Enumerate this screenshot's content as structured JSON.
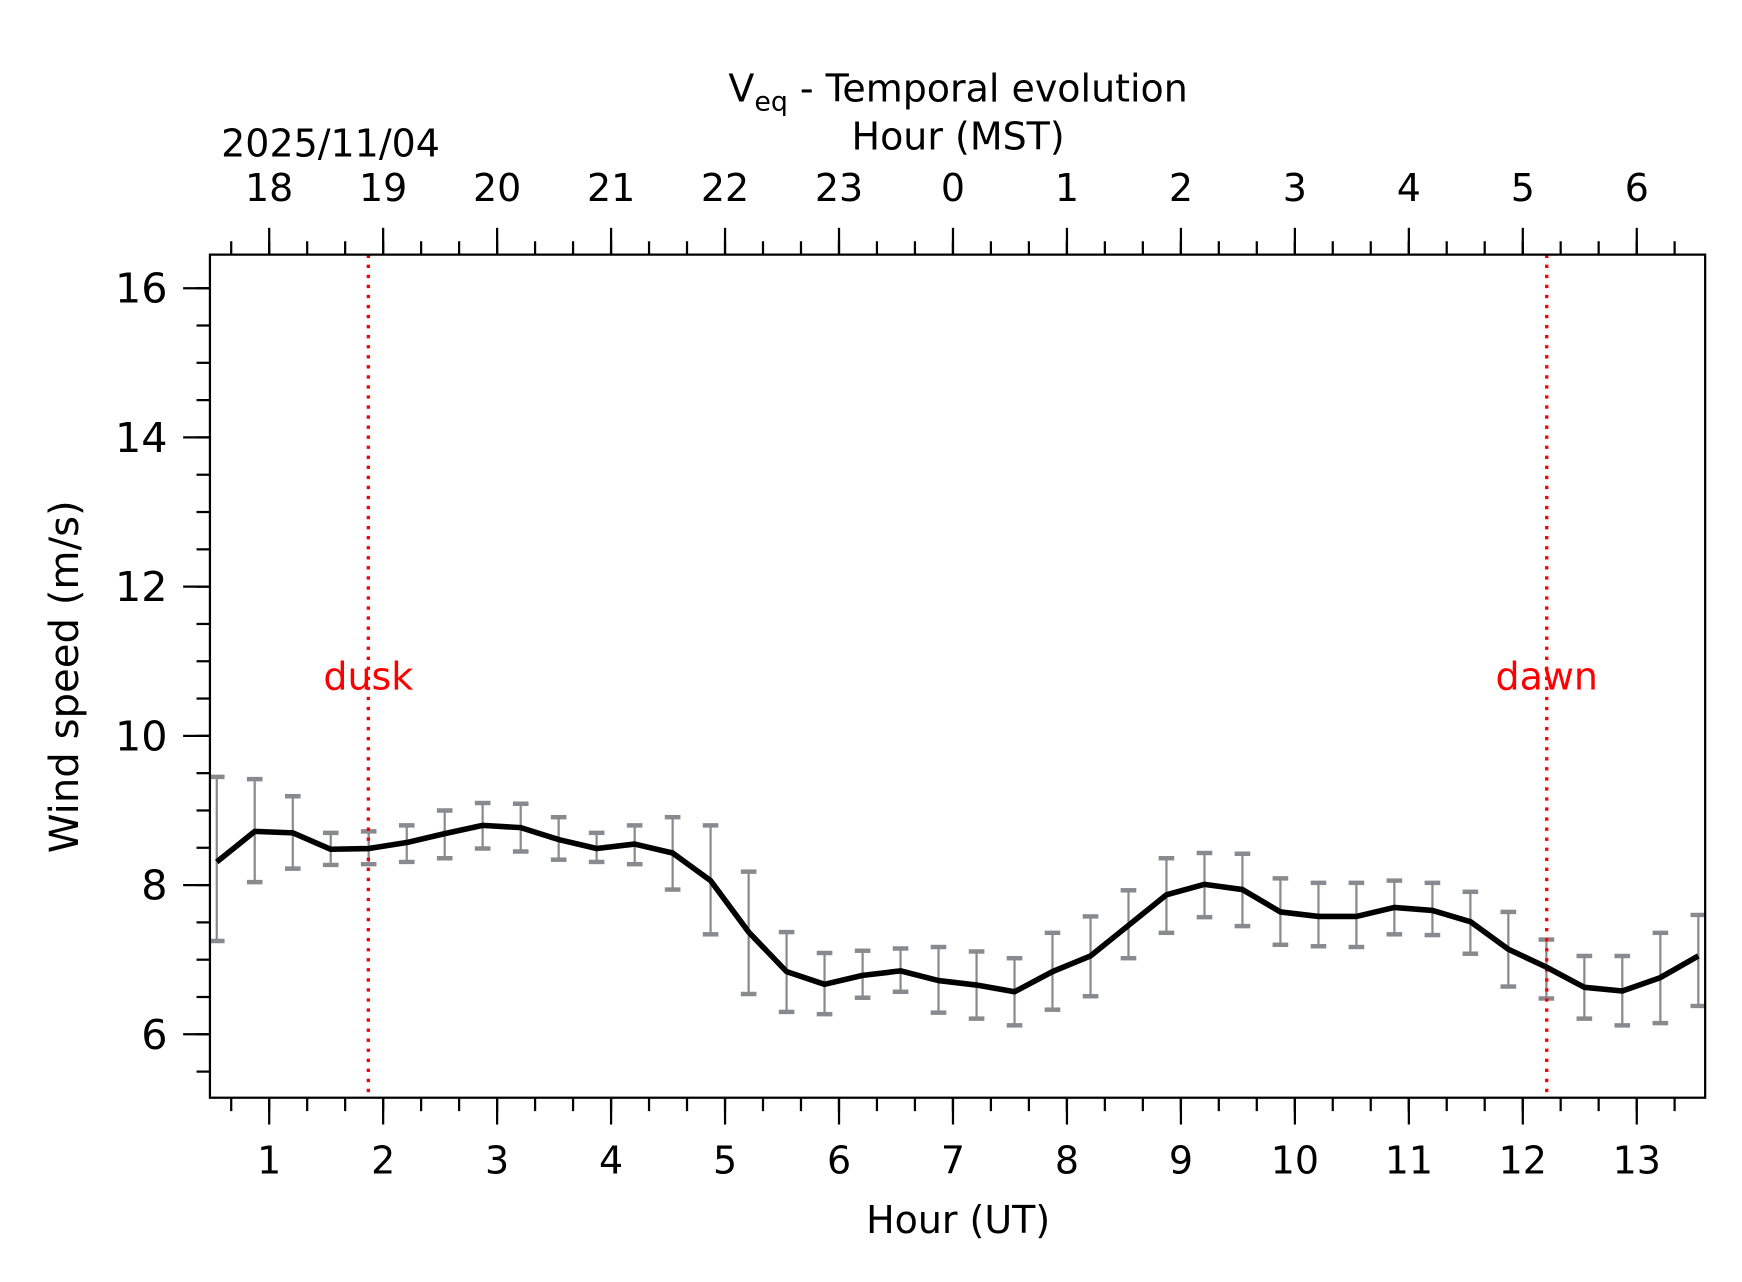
{
  "chart_data": {
    "type": "line",
    "title": "V_eq - Temporal evolution",
    "title_main": "V",
    "title_sub": "eq",
    "title_rest": " - Temporal evolution",
    "date_label": "2025/11/04",
    "xlabel": "Hour (UT)",
    "x2label": "Hour (MST)",
    "ylabel": "Wind speed (m/s)",
    "xlim": [
      0.48,
      13.6
    ],
    "ylim": [
      5.15,
      16.45
    ],
    "x_ticks": [
      1,
      2,
      3,
      4,
      5,
      6,
      7,
      8,
      9,
      10,
      11,
      12,
      13
    ],
    "x_minor_step": 0.3333,
    "x2_offset_hours": -7,
    "x2_tick_labels": [
      "18",
      "19",
      "20",
      "21",
      "22",
      "23",
      "0",
      "1",
      "2",
      "3",
      "4",
      "5",
      "6"
    ],
    "y_ticks": [
      6,
      8,
      10,
      12,
      14,
      16
    ],
    "y_minor_step": 0.5,
    "grid": false,
    "colors": {
      "line": "#000000",
      "errorbar": "#888a90",
      "marker_line": "#ff0000"
    },
    "series": [
      {
        "x": [
          0.54,
          0.873,
          1.207,
          1.54,
          1.873,
          2.207,
          2.54,
          2.873,
          3.207,
          3.54,
          3.873,
          4.207,
          4.54,
          4.873,
          5.207,
          5.54,
          5.873,
          6.207,
          6.54,
          6.873,
          7.207,
          7.54,
          7.873,
          8.207,
          8.54,
          8.873,
          9.207,
          9.54,
          9.873,
          10.207,
          10.54,
          10.873,
          11.207,
          11.54,
          11.873,
          12.207,
          12.54,
          12.873,
          13.207,
          13.54
        ],
        "y": [
          8.31,
          8.72,
          8.7,
          8.48,
          8.49,
          8.57,
          8.69,
          8.8,
          8.77,
          8.61,
          8.49,
          8.55,
          8.43,
          8.06,
          7.37,
          6.84,
          6.67,
          6.79,
          6.85,
          6.72,
          6.66,
          6.57,
          6.84,
          7.05,
          7.46,
          7.87,
          8.01,
          7.94,
          7.64,
          7.58,
          7.58,
          7.7,
          7.66,
          7.51,
          7.14,
          6.9,
          6.63,
          6.58,
          6.76,
          7.05
        ],
        "err_upper": [
          9.45,
          9.42,
          9.19,
          8.7,
          8.72,
          8.8,
          9.0,
          9.1,
          9.09,
          8.91,
          8.7,
          8.8,
          8.91,
          8.8,
          8.18,
          7.37,
          7.09,
          7.12,
          7.15,
          7.17,
          7.11,
          7.02,
          7.36,
          7.58,
          7.93,
          8.36,
          8.43,
          8.42,
          8.09,
          8.03,
          8.03,
          8.06,
          8.03,
          7.91,
          7.64,
          7.27,
          7.05,
          7.05,
          7.36,
          7.6
        ],
        "err_lower": [
          7.25,
          8.04,
          8.22,
          8.27,
          8.28,
          8.31,
          8.36,
          8.49,
          8.45,
          8.34,
          8.31,
          8.28,
          7.94,
          7.34,
          6.54,
          6.3,
          6.27,
          6.49,
          6.57,
          6.29,
          6.21,
          6.12,
          6.33,
          6.51,
          7.02,
          7.36,
          7.57,
          7.45,
          7.2,
          7.18,
          7.17,
          7.34,
          7.33,
          7.08,
          6.64,
          6.48,
          6.21,
          6.12,
          6.15,
          6.38
        ]
      }
    ],
    "annotations": [
      {
        "label": "dusk",
        "x": 1.87,
        "y": 10.8
      },
      {
        "label": "dawn",
        "x": 12.21,
        "y": 10.8
      }
    ]
  }
}
